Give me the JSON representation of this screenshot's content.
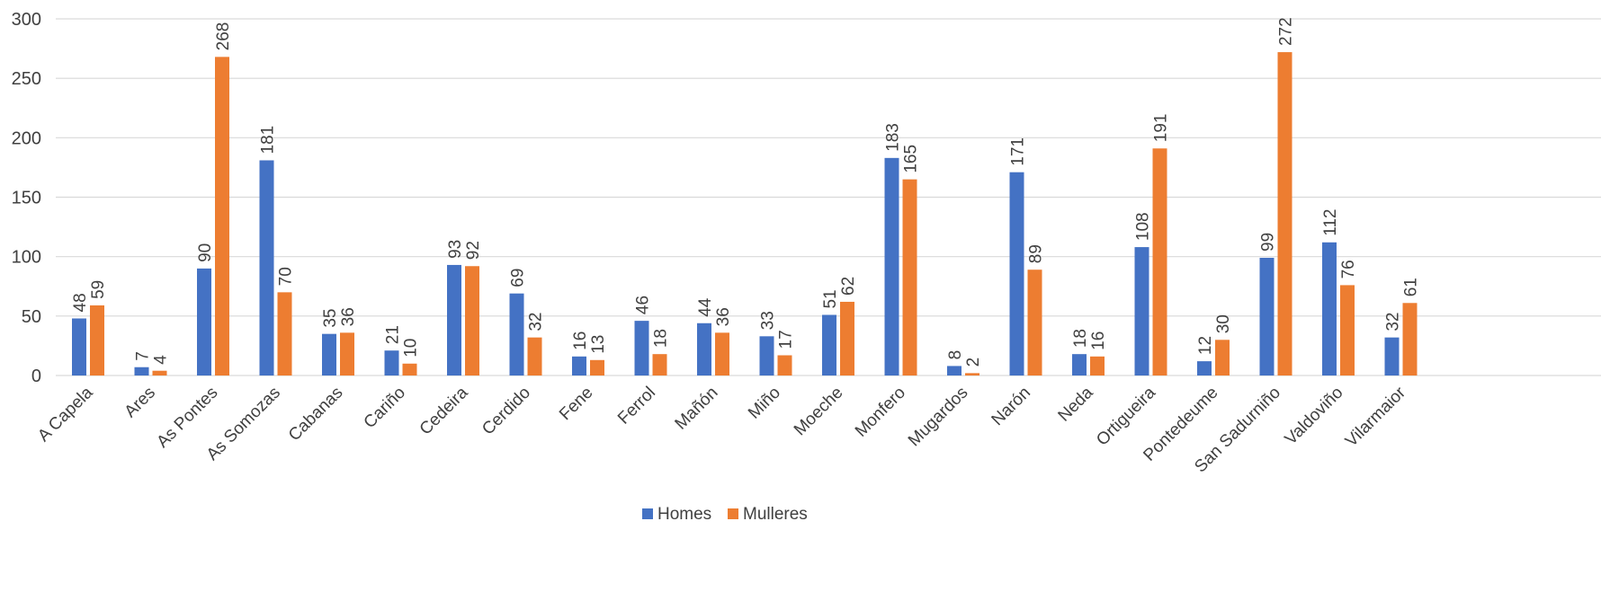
{
  "chart_data": {
    "type": "bar",
    "categories": [
      "A Capela",
      "Ares",
      "As Pontes",
      "As Somozas",
      "Cabanas",
      "Cariño",
      "Cedeira",
      "Cerdido",
      "Fene",
      "Ferrol",
      "Mañón",
      "Miño",
      "Moeche",
      "Monfero",
      "Mugardos",
      "Narón",
      "Neda",
      "Ortigueira",
      "Pontedeume",
      "San Sadurniño",
      "Valdoviño",
      "Vilarmaior"
    ],
    "series": [
      {
        "name": "Homes",
        "color": "#4472C4",
        "values": [
          48,
          7,
          90,
          181,
          35,
          21,
          93,
          69,
          16,
          46,
          44,
          33,
          51,
          183,
          8,
          171,
          18,
          108,
          12,
          99,
          112,
          32
        ]
      },
      {
        "name": "Mulleres",
        "color": "#ED7D31",
        "values": [
          59,
          4,
          268,
          70,
          36,
          10,
          92,
          32,
          13,
          18,
          36,
          17,
          62,
          165,
          2,
          89,
          16,
          191,
          30,
          272,
          76,
          61
        ]
      }
    ],
    "yticks": [
      "0",
      "50",
      "100",
      "150",
      "200",
      "250",
      "300"
    ],
    "ylim": [
      0,
      300
    ],
    "grid": true,
    "legend_position": "bottom",
    "data_labels": true,
    "gridline_color": "#D9D9D9"
  }
}
